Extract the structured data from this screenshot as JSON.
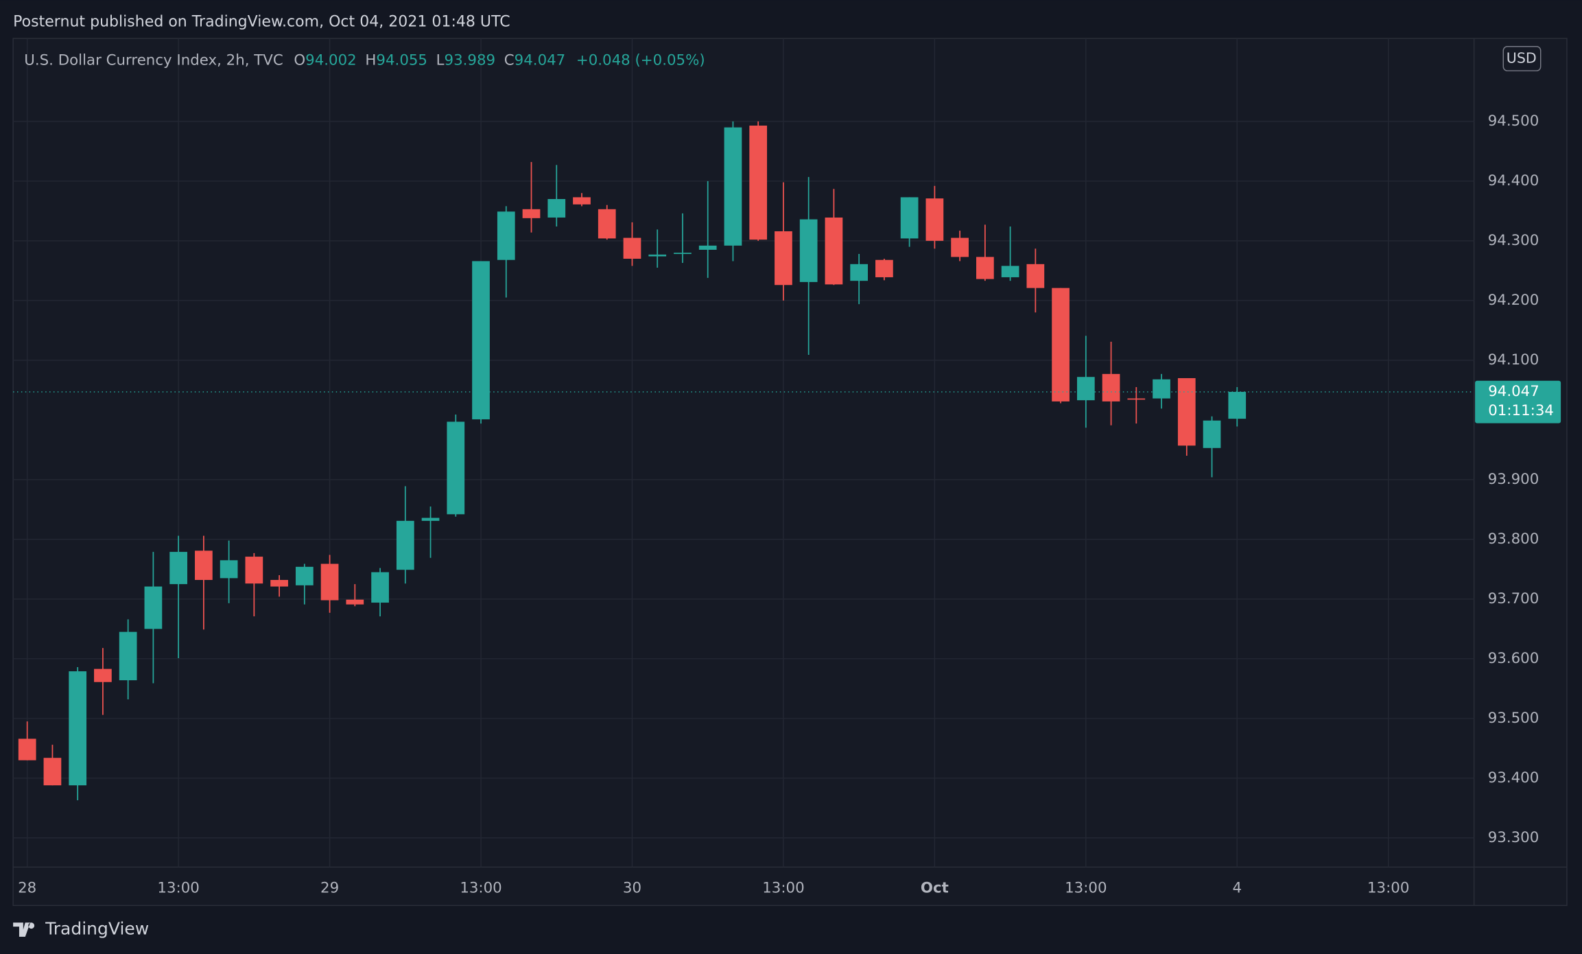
{
  "chart_data": {
    "type": "candlestick",
    "publisher": "Posternut published on TradingView.com, Oct 04, 2021 01:48 UTC",
    "title": "U.S. Dollar Currency Index, 2h, TVC",
    "ohlc_labels": [
      "O",
      "H",
      "L",
      "C"
    ],
    "change": "+0.048 (+0.05%)",
    "currency": "USD",
    "countdown": "01:11:34",
    "brand": "TradingView",
    "up_color": "#26a69a",
    "down_color": "#ef5350",
    "grid": true,
    "open": [
      93.466,
      93.434,
      93.388,
      93.583,
      93.564,
      93.65,
      93.725,
      93.781,
      93.735,
      93.771,
      93.732,
      93.723,
      93.759,
      93.699,
      93.694,
      93.749,
      93.831,
      93.842,
      94.001,
      94.268,
      94.353,
      94.339,
      94.373,
      94.353,
      94.305,
      94.274,
      94.278,
      94.285,
      94.292,
      94.493,
      94.316,
      94.231,
      94.339,
      94.233,
      94.268,
      94.304,
      94.371,
      94.305,
      94.273,
      94.239,
      94.261,
      94.221,
      94.033,
      94.077,
      94.036,
      94.036,
      94.07,
      93.953,
      94.002
    ],
    "high": [
      93.495,
      93.456,
      93.586,
      93.618,
      93.666,
      93.779,
      93.806,
      93.806,
      93.798,
      93.777,
      93.74,
      93.759,
      93.774,
      93.725,
      93.752,
      93.889,
      93.855,
      94.009,
      94.266,
      94.358,
      94.432,
      94.427,
      94.38,
      94.36,
      94.331,
      94.319,
      94.346,
      94.4,
      94.5,
      94.5,
      94.398,
      94.407,
      94.387,
      94.278,
      94.27,
      94.373,
      94.392,
      94.317,
      94.327,
      94.324,
      94.287,
      94.221,
      94.141,
      94.131,
      94.055,
      94.077,
      94.07,
      94.006,
      94.055
    ],
    "low": [
      93.43,
      93.388,
      93.363,
      93.506,
      93.532,
      93.559,
      93.601,
      93.649,
      93.693,
      93.671,
      93.704,
      93.691,
      93.677,
      93.688,
      93.671,
      93.726,
      93.769,
      93.838,
      93.994,
      94.205,
      94.314,
      94.324,
      94.358,
      94.302,
      94.258,
      94.255,
      94.263,
      94.238,
      94.266,
      94.3,
      94.2,
      94.109,
      94.226,
      94.194,
      94.234,
      94.29,
      94.287,
      94.266,
      94.233,
      94.233,
      94.18,
      94.028,
      93.987,
      93.991,
      93.994,
      94.019,
      93.94,
      93.904,
      93.989
    ],
    "close": [
      93.43,
      93.388,
      93.579,
      93.561,
      93.645,
      93.721,
      93.779,
      93.732,
      93.765,
      93.726,
      93.721,
      93.754,
      93.698,
      93.691,
      93.745,
      93.831,
      93.836,
      93.997,
      94.266,
      94.349,
      94.338,
      94.37,
      94.361,
      94.304,
      94.27,
      94.277,
      94.28,
      94.292,
      94.49,
      94.302,
      94.226,
      94.336,
      94.227,
      94.261,
      94.239,
      94.373,
      94.3,
      94.273,
      94.236,
      94.258,
      94.221,
      94.031,
      94.072,
      94.031,
      94.034,
      94.068,
      93.957,
      93.999,
      94.047
    ],
    "xlim": [
      -0.56,
      57.4
    ],
    "xticks": [
      {
        "value": 0,
        "label": "28"
      },
      {
        "value": 6,
        "label": "13:00"
      },
      {
        "value": 12,
        "label": "29"
      },
      {
        "value": 18,
        "label": "13:00"
      },
      {
        "value": 24,
        "label": "30"
      },
      {
        "value": 30,
        "label": "13:00"
      },
      {
        "value": 36,
        "label": "Oct"
      },
      {
        "value": 42,
        "label": "13:00"
      },
      {
        "value": 48,
        "label": "4"
      },
      {
        "value": 54,
        "label": "13:00"
      }
    ],
    "ylim": [
      93.251,
      94.639
    ],
    "yticks": [
      {
        "value": 93.3,
        "label": "93.300"
      },
      {
        "value": 93.4,
        "label": "93.400"
      },
      {
        "value": 93.5,
        "label": "93.500"
      },
      {
        "value": 93.6,
        "label": "93.600"
      },
      {
        "value": 93.7,
        "label": "93.700"
      },
      {
        "value": 93.8,
        "label": "93.800"
      },
      {
        "value": 93.9,
        "label": "93.900"
      },
      {
        "value": 94.1,
        "label": "94.100"
      },
      {
        "value": 94.2,
        "label": "94.200"
      },
      {
        "value": 94.3,
        "label": "94.300"
      },
      {
        "value": 94.4,
        "label": "94.400"
      },
      {
        "value": 94.5,
        "label": "94.500"
      }
    ]
  }
}
